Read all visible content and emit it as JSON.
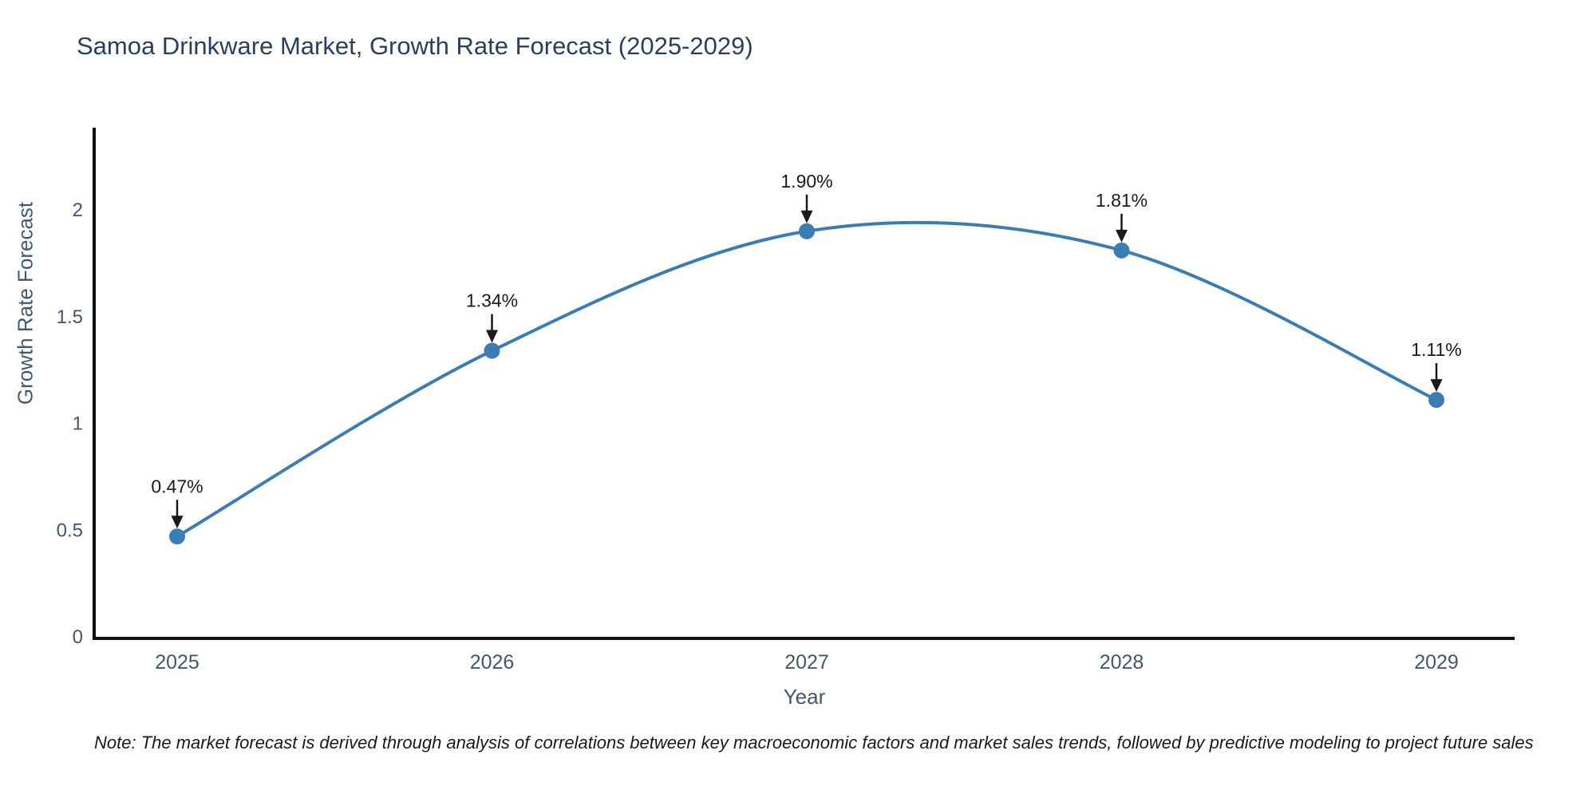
{
  "chart_data": {
    "type": "line",
    "title": "Samoa Drinkware Market, Growth Rate Forecast (2025-2029)",
    "xlabel": "Year",
    "ylabel": "Growth Rate Forecast",
    "x": [
      2025,
      2026,
      2027,
      2028,
      2029
    ],
    "values": [
      0.47,
      1.34,
      1.9,
      1.81,
      1.11
    ],
    "point_labels": [
      "0.47%",
      "1.34%",
      "1.90%",
      "1.81%",
      "1.11%"
    ],
    "x_ticks": [
      "2025",
      "2026",
      "2027",
      "2028",
      "2029"
    ],
    "y_ticks": [
      "0",
      "0.5",
      "1",
      "1.5",
      "2"
    ],
    "y_tick_values": [
      0,
      0.5,
      1,
      1.5,
      2
    ],
    "ylim": [
      0,
      2.4
    ],
    "line_shape": "spline",
    "grid": false,
    "legend": "none",
    "note": "Note: The market forecast is derived through analysis of correlations between key macroeconomic factors and market sales trends, followed by predictive modeling to project future sales",
    "colors": {
      "line": "#3c7cb5",
      "marker": "#3c7cb5",
      "title_text": "#2a3f5f",
      "tick_text": "#42576e",
      "axis": "#111111",
      "annotation": "#1a1a1a"
    }
  }
}
